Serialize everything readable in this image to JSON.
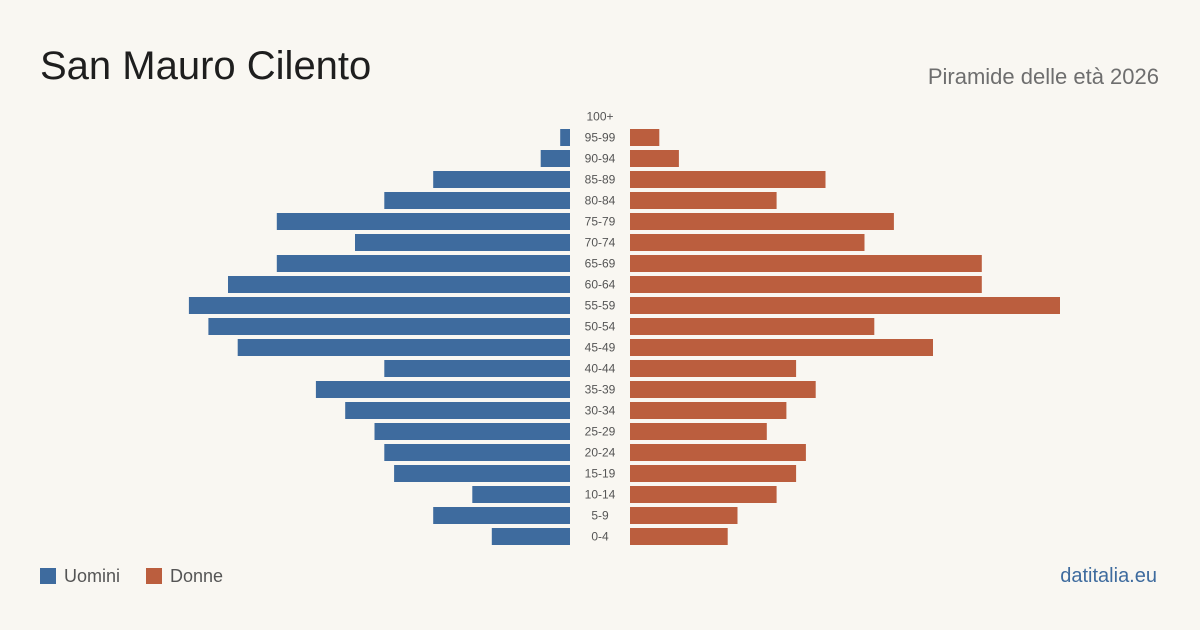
{
  "title": "San Mauro Cilento",
  "subtitle": "Piramide delle età 2026",
  "brand": "datitalia.eu",
  "colors": {
    "men": "#3e6b9e",
    "women": "#bb5e3e",
    "background": "#f9f7f2"
  },
  "legend": {
    "men_label": "Uomini",
    "women_label": "Donne"
  },
  "chart_data": {
    "type": "bar",
    "orientation": "horizontal",
    "categories": [
      "100+",
      "95-99",
      "90-94",
      "85-89",
      "80-84",
      "75-79",
      "70-74",
      "65-69",
      "60-64",
      "55-59",
      "50-54",
      "45-49",
      "40-44",
      "35-39",
      "30-34",
      "25-29",
      "20-24",
      "15-19",
      "10-14",
      "5-9",
      "0-4"
    ],
    "series": [
      {
        "name": "Uomini",
        "values": [
          0,
          1,
          3,
          14,
          19,
          30,
          22,
          30,
          35,
          39,
          37,
          34,
          19,
          26,
          23,
          20,
          19,
          18,
          10,
          14,
          8
        ]
      },
      {
        "name": "Donne",
        "values": [
          0,
          3,
          5,
          20,
          15,
          27,
          24,
          36,
          36,
          44,
          25,
          31,
          17,
          19,
          16,
          14,
          18,
          17,
          15,
          11,
          10
        ]
      }
    ],
    "legend_position": "bottom-left",
    "grid": false
  }
}
